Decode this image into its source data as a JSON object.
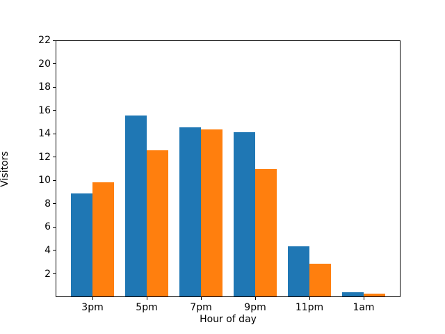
{
  "figure": {
    "background": "#ffffff"
  },
  "chart_data": {
    "type": "bar",
    "title": "",
    "xlabel": "Hour of day",
    "ylabel": "Visitors",
    "categories": [
      "3pm",
      "5pm",
      "7pm",
      "9pm",
      "11pm",
      "1am"
    ],
    "series": [
      {
        "name": "blue-series",
        "color": "#1f77b4",
        "values": [
          8.8,
          15.5,
          14.5,
          14.1,
          4.3,
          0.35
        ]
      },
      {
        "name": "orange-series",
        "color": "#ff7f0e",
        "values": [
          9.8,
          12.5,
          14.3,
          10.9,
          2.8,
          0.25
        ]
      }
    ],
    "ylim": [
      0,
      22
    ],
    "yticks": [
      2,
      4,
      6,
      8,
      10,
      12,
      14,
      16,
      18,
      20,
      22
    ],
    "bar_width": 0.4,
    "grid": false,
    "legend": null,
    "spine_color": "#000000",
    "text_color": "#000000"
  }
}
